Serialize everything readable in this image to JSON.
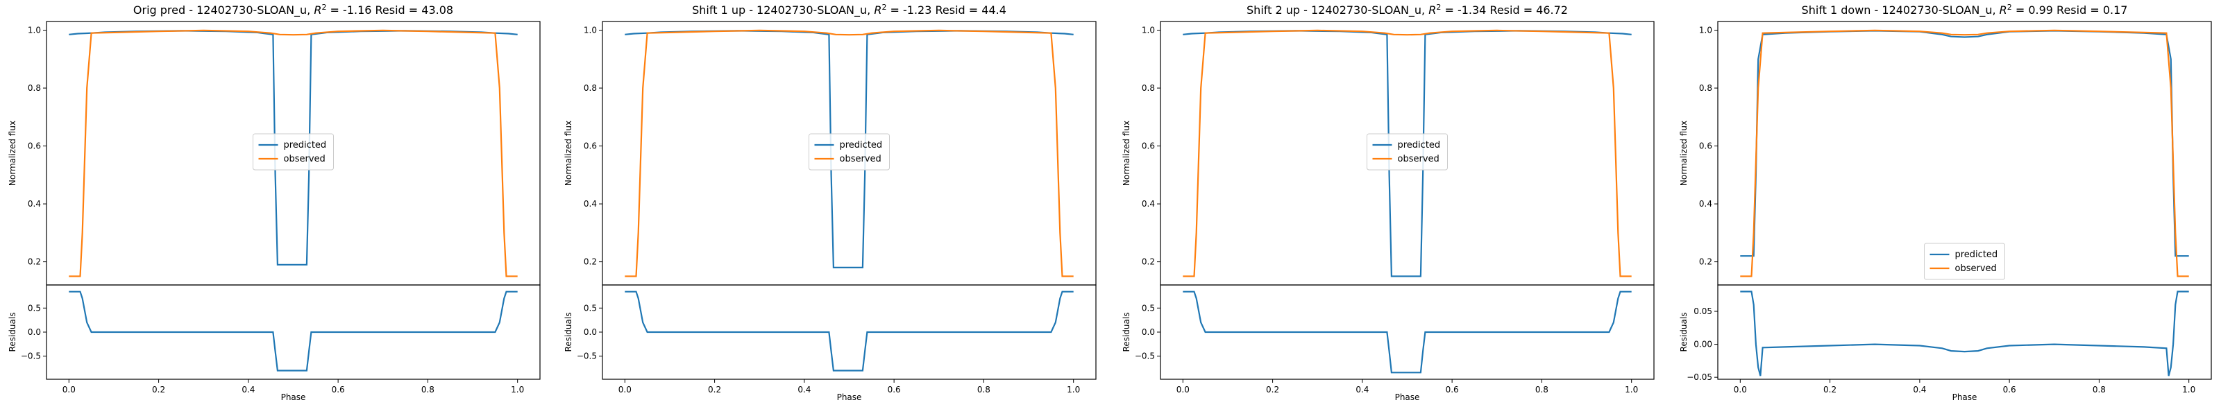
{
  "colors": {
    "predicted": "#1f77b4",
    "observed": "#ff7f0e"
  },
  "chart_data": [
    {
      "type": "line",
      "title": "Orig pred - 12402730-SLOAN_u, $R^2 = $-1.16 Resid = 43.08",
      "title_prefix": "Orig pred - 12402730-SLOAN_u, ",
      "title_suffix": " = -1.16 Resid = 43.08",
      "legend": {
        "position": "center",
        "entries": [
          "predicted",
          "observed"
        ]
      },
      "top": {
        "ylabel": "Normalized flux",
        "ylim": [
          0.12,
          1.03
        ],
        "yticks": [
          0.2,
          0.4,
          0.6,
          0.8,
          1.0
        ],
        "ytick_labels": [
          "0.2",
          "0.4",
          "0.6",
          "0.8",
          "1.0"
        ],
        "series": [
          {
            "name": "predicted",
            "x": [
              0,
              0.02,
              0.05,
              0.08,
              0.15,
              0.25,
              0.35,
              0.42,
              0.455,
              0.46,
              0.465,
              0.53,
              0.535,
              0.54,
              0.575,
              0.65,
              0.75,
              0.85,
              0.92,
              0.95,
              0.98,
              1.0
            ],
            "y": [
              0.985,
              0.988,
              0.99,
              0.993,
              0.996,
              0.998,
              0.996,
              0.992,
              0.985,
              0.5,
              0.19,
              0.19,
              0.5,
              0.985,
              0.992,
              0.996,
              0.998,
              0.996,
              0.993,
              0.99,
              0.988,
              0.985
            ]
          },
          {
            "name": "observed",
            "x": [
              0,
              0.025,
              0.03,
              0.04,
              0.05,
              0.1,
              0.2,
              0.3,
              0.4,
              0.45,
              0.47,
              0.5,
              0.53,
              0.55,
              0.6,
              0.7,
              0.8,
              0.9,
              0.95,
              0.96,
              0.97,
              0.975,
              1.0
            ],
            "y": [
              0.15,
              0.15,
              0.3,
              0.8,
              0.99,
              0.992,
              0.996,
              0.999,
              0.996,
              0.99,
              0.985,
              0.984,
              0.985,
              0.99,
              0.996,
              0.999,
              0.996,
              0.992,
              0.99,
              0.8,
              0.3,
              0.15,
              0.15
            ]
          }
        ]
      },
      "bottom": {
        "xlabel": "Phase",
        "ylabel": "Residuals",
        "ylim": [
          -0.98,
          0.98
        ],
        "yticks": [
          -0.5,
          0,
          0.5
        ],
        "ytick_labels": [
          "−0.5",
          "0.0",
          "0.5"
        ],
        "xticks": [
          0,
          0.2,
          0.4,
          0.6,
          0.8,
          1.0
        ],
        "xtick_labels": [
          "0.0",
          "0.2",
          "0.4",
          "0.6",
          "0.8",
          "1.0"
        ],
        "series": [
          {
            "name": "residual",
            "x": [
              0,
              0.025,
              0.03,
              0.04,
              0.05,
              0.1,
              0.2,
              0.3,
              0.4,
              0.455,
              0.46,
              0.465,
              0.53,
              0.535,
              0.54,
              0.6,
              0.7,
              0.8,
              0.9,
              0.95,
              0.96,
              0.97,
              0.975,
              1.0
            ],
            "y": [
              0.84,
              0.84,
              0.7,
              0.2,
              0.0,
              0.0,
              0.0,
              0.0,
              0.0,
              0.0,
              -0.4,
              -0.8,
              -0.8,
              -0.4,
              0.0,
              0.0,
              0.0,
              0.0,
              0.0,
              0.0,
              0.2,
              0.7,
              0.84,
              0.84
            ]
          }
        ]
      }
    },
    {
      "type": "line",
      "title": "Shift 1 up - 12402730-SLOAN_u, $R^2 = $-1.23 Resid = 44.4",
      "title_prefix": "Shift 1 up - 12402730-SLOAN_u, ",
      "title_suffix": " = -1.23 Resid = 44.4",
      "legend": {
        "position": "center",
        "entries": [
          "predicted",
          "observed"
        ]
      },
      "top": {
        "ylabel": "Normalized flux",
        "ylim": [
          0.12,
          1.03
        ],
        "yticks": [
          0.2,
          0.4,
          0.6,
          0.8,
          1.0
        ],
        "ytick_labels": [
          "0.2",
          "0.4",
          "0.6",
          "0.8",
          "1.0"
        ],
        "series": [
          {
            "name": "predicted",
            "x": [
              0,
              0.02,
              0.05,
              0.08,
              0.15,
              0.25,
              0.35,
              0.42,
              0.455,
              0.46,
              0.465,
              0.53,
              0.535,
              0.54,
              0.575,
              0.65,
              0.75,
              0.85,
              0.92,
              0.95,
              0.98,
              1.0
            ],
            "y": [
              0.985,
              0.988,
              0.99,
              0.993,
              0.996,
              0.998,
              0.996,
              0.992,
              0.985,
              0.5,
              0.18,
              0.18,
              0.5,
              0.985,
              0.992,
              0.996,
              0.998,
              0.996,
              0.993,
              0.99,
              0.988,
              0.985
            ]
          },
          {
            "name": "observed",
            "x": [
              0,
              0.025,
              0.03,
              0.04,
              0.05,
              0.1,
              0.2,
              0.3,
              0.4,
              0.45,
              0.47,
              0.5,
              0.53,
              0.55,
              0.6,
              0.7,
              0.8,
              0.9,
              0.95,
              0.96,
              0.97,
              0.975,
              1.0
            ],
            "y": [
              0.15,
              0.15,
              0.3,
              0.8,
              0.99,
              0.992,
              0.996,
              0.999,
              0.996,
              0.99,
              0.985,
              0.984,
              0.985,
              0.99,
              0.996,
              0.999,
              0.996,
              0.992,
              0.99,
              0.8,
              0.3,
              0.15,
              0.15
            ]
          }
        ]
      },
      "bottom": {
        "xlabel": "Phase",
        "ylabel": "Residuals",
        "ylim": [
          -0.98,
          0.98
        ],
        "yticks": [
          -0.5,
          0,
          0.5
        ],
        "ytick_labels": [
          "−0.5",
          "0.0",
          "0.5"
        ],
        "xticks": [
          0,
          0.2,
          0.4,
          0.6,
          0.8,
          1.0
        ],
        "xtick_labels": [
          "0.0",
          "0.2",
          "0.4",
          "0.6",
          "0.8",
          "1.0"
        ],
        "series": [
          {
            "name": "residual",
            "x": [
              0,
              0.025,
              0.03,
              0.04,
              0.05,
              0.1,
              0.2,
              0.3,
              0.4,
              0.455,
              0.46,
              0.465,
              0.53,
              0.535,
              0.54,
              0.6,
              0.7,
              0.8,
              0.9,
              0.95,
              0.96,
              0.97,
              0.975,
              1.0
            ],
            "y": [
              0.84,
              0.84,
              0.7,
              0.2,
              0.0,
              0.0,
              0.0,
              0.0,
              0.0,
              0.0,
              -0.4,
              -0.8,
              -0.8,
              -0.4,
              0.0,
              0.0,
              0.0,
              0.0,
              0.0,
              0.0,
              0.2,
              0.7,
              0.84,
              0.84
            ]
          }
        ]
      }
    },
    {
      "type": "line",
      "title": "Shift 2 up - 12402730-SLOAN_u, $R^2 = $-1.34 Resid = 46.72",
      "title_prefix": "Shift 2 up - 12402730-SLOAN_u, ",
      "title_suffix": " = -1.34 Resid = 46.72",
      "legend": {
        "position": "center",
        "entries": [
          "predicted",
          "observed"
        ]
      },
      "top": {
        "ylabel": "Normalized flux",
        "ylim": [
          0.12,
          1.03
        ],
        "yticks": [
          0.2,
          0.4,
          0.6,
          0.8,
          1.0
        ],
        "ytick_labels": [
          "0.2",
          "0.4",
          "0.6",
          "0.8",
          "1.0"
        ],
        "series": [
          {
            "name": "predicted",
            "x": [
              0,
              0.02,
              0.05,
              0.08,
              0.15,
              0.25,
              0.35,
              0.42,
              0.455,
              0.46,
              0.465,
              0.53,
              0.535,
              0.54,
              0.575,
              0.65,
              0.75,
              0.85,
              0.92,
              0.95,
              0.98,
              1.0
            ],
            "y": [
              0.985,
              0.988,
              0.99,
              0.993,
              0.996,
              0.998,
              0.996,
              0.992,
              0.985,
              0.5,
              0.15,
              0.15,
              0.5,
              0.985,
              0.992,
              0.996,
              0.998,
              0.996,
              0.993,
              0.99,
              0.988,
              0.985
            ]
          },
          {
            "name": "observed",
            "x": [
              0,
              0.025,
              0.03,
              0.04,
              0.05,
              0.1,
              0.2,
              0.3,
              0.4,
              0.45,
              0.47,
              0.5,
              0.53,
              0.55,
              0.6,
              0.7,
              0.8,
              0.9,
              0.95,
              0.96,
              0.97,
              0.975,
              1.0
            ],
            "y": [
              0.15,
              0.15,
              0.3,
              0.8,
              0.99,
              0.992,
              0.996,
              0.999,
              0.996,
              0.99,
              0.985,
              0.984,
              0.985,
              0.99,
              0.996,
              0.999,
              0.996,
              0.992,
              0.99,
              0.8,
              0.3,
              0.15,
              0.15
            ]
          }
        ]
      },
      "bottom": {
        "xlabel": "Phase",
        "ylabel": "Residuals",
        "ylim": [
          -0.98,
          0.98
        ],
        "yticks": [
          -0.5,
          0,
          0.5
        ],
        "ytick_labels": [
          "−0.5",
          "0.0",
          "0.5"
        ],
        "xticks": [
          0,
          0.2,
          0.4,
          0.6,
          0.8,
          1.0
        ],
        "xtick_labels": [
          "0.0",
          "0.2",
          "0.4",
          "0.6",
          "0.8",
          "1.0"
        ],
        "series": [
          {
            "name": "residual",
            "x": [
              0,
              0.025,
              0.03,
              0.04,
              0.05,
              0.1,
              0.2,
              0.3,
              0.4,
              0.455,
              0.46,
              0.465,
              0.53,
              0.535,
              0.54,
              0.6,
              0.7,
              0.8,
              0.9,
              0.95,
              0.96,
              0.97,
              0.975,
              1.0
            ],
            "y": [
              0.84,
              0.84,
              0.7,
              0.2,
              0.0,
              0.0,
              0.0,
              0.0,
              0.0,
              0.0,
              -0.4,
              -0.84,
              -0.84,
              -0.4,
              0.0,
              0.0,
              0.0,
              0.0,
              0.0,
              0.0,
              0.2,
              0.7,
              0.84,
              0.84
            ]
          }
        ]
      }
    },
    {
      "type": "line",
      "title": "Shift 1 down - 12402730-SLOAN_u, $R^2 = $0.99 Resid = 0.17",
      "title_prefix": "Shift 1 down - 12402730-SLOAN_u, ",
      "title_suffix": " = 0.99 Resid = 0.17",
      "legend": {
        "position": "lower center",
        "entries": [
          "predicted",
          "observed"
        ]
      },
      "top": {
        "ylabel": "Normalized flux",
        "ylim": [
          0.12,
          1.03
        ],
        "yticks": [
          0.2,
          0.4,
          0.6,
          0.8,
          1.0
        ],
        "ytick_labels": [
          "0.2",
          "0.4",
          "0.6",
          "0.8",
          "1.0"
        ],
        "series": [
          {
            "name": "predicted",
            "x": [
              0,
              0.03,
              0.035,
              0.04,
              0.05,
              0.1,
              0.2,
              0.3,
              0.4,
              0.45,
              0.47,
              0.5,
              0.53,
              0.55,
              0.6,
              0.7,
              0.8,
              0.9,
              0.95,
              0.96,
              0.965,
              0.97,
              1.0
            ],
            "y": [
              0.22,
              0.22,
              0.5,
              0.9,
              0.985,
              0.99,
              0.995,
              0.998,
              0.995,
              0.985,
              0.978,
              0.976,
              0.978,
              0.985,
              0.995,
              0.998,
              0.995,
              0.99,
              0.985,
              0.9,
              0.5,
              0.22,
              0.22
            ]
          },
          {
            "name": "observed",
            "x": [
              0,
              0.025,
              0.03,
              0.04,
              0.05,
              0.1,
              0.2,
              0.3,
              0.4,
              0.45,
              0.47,
              0.5,
              0.53,
              0.55,
              0.6,
              0.7,
              0.8,
              0.9,
              0.95,
              0.96,
              0.97,
              0.975,
              1.0
            ],
            "y": [
              0.15,
              0.15,
              0.3,
              0.8,
              0.99,
              0.992,
              0.996,
              0.999,
              0.996,
              0.99,
              0.985,
              0.984,
              0.985,
              0.99,
              0.996,
              0.999,
              0.996,
              0.992,
              0.99,
              0.8,
              0.3,
              0.15,
              0.15
            ]
          }
        ]
      },
      "bottom": {
        "xlabel": "Phase",
        "ylabel": "Residuals",
        "ylim": [
          -0.053,
          0.09
        ],
        "yticks": [
          -0.05,
          0,
          0.05
        ],
        "ytick_labels": [
          "−0.05",
          "0.00",
          "0.05"
        ],
        "xticks": [
          0,
          0.2,
          0.4,
          0.6,
          0.8,
          1.0
        ],
        "xtick_labels": [
          "0.0",
          "0.2",
          "0.4",
          "0.6",
          "0.8",
          "1.0"
        ],
        "series": [
          {
            "name": "residual",
            "x": [
              0,
              0.025,
              0.03,
              0.035,
              0.04,
              0.045,
              0.05,
              0.1,
              0.2,
              0.3,
              0.4,
              0.45,
              0.47,
              0.5,
              0.53,
              0.55,
              0.6,
              0.7,
              0.8,
              0.9,
              0.95,
              0.955,
              0.96,
              0.965,
              0.97,
              0.975,
              1.0
            ],
            "y": [
              0.08,
              0.08,
              0.06,
              0.0,
              -0.035,
              -0.048,
              -0.005,
              -0.004,
              -0.002,
              0.0,
              -0.002,
              -0.006,
              -0.01,
              -0.011,
              -0.01,
              -0.006,
              -0.002,
              0.0,
              -0.002,
              -0.004,
              -0.006,
              -0.048,
              -0.035,
              0.0,
              0.06,
              0.08,
              0.08
            ]
          }
        ]
      }
    }
  ]
}
